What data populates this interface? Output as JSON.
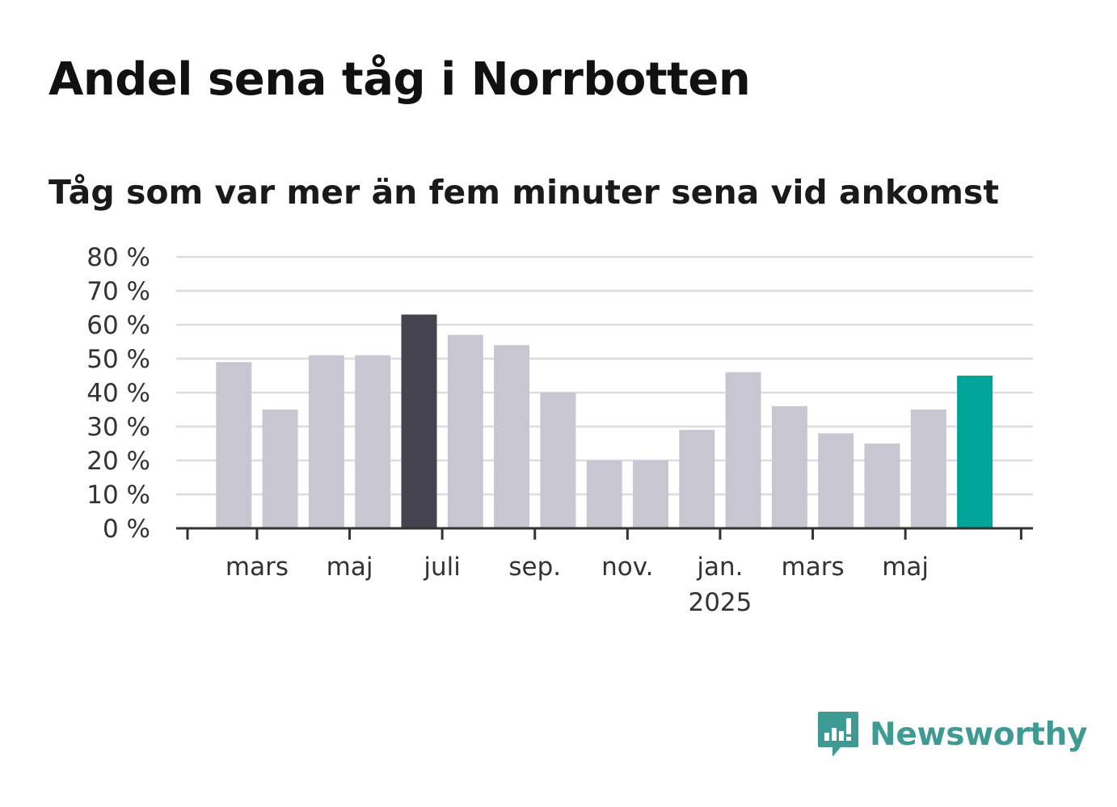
{
  "title": "Andel sena tåg i Norrbotten",
  "subtitle": "Tåg som var mer än fem minuter sena vid ankomst",
  "brand": {
    "name": "Newsworthy",
    "logo_icon": "bar-chart-speech-bubble-icon",
    "color": "#3f9a93"
  },
  "colors": {
    "default_bar": "#c8c7d1",
    "highlight_bar": "#45434f",
    "latest_bar": "#00a599",
    "grid": "#dcdcdc",
    "axis": "#333333"
  },
  "chart_data": {
    "type": "bar",
    "categories": [
      "2024-02",
      "2024-03",
      "2024-04",
      "2024-05",
      "2024-06",
      "2024-07",
      "2024-08",
      "2024-09",
      "2024-10",
      "2024-11",
      "2024-12",
      "2025-01",
      "2025-02",
      "2025-03",
      "2025-04",
      "2025-05",
      "2025-06"
    ],
    "values": [
      49,
      35,
      51,
      51,
      63,
      57,
      54,
      40,
      20,
      20,
      29,
      46,
      36,
      28,
      25,
      35,
      45
    ],
    "highlight": {
      "max": 4,
      "latest": 16
    },
    "ylim": [
      0,
      80
    ],
    "yticks": [
      {
        "value": 0,
        "label": "0 %"
      },
      {
        "value": 10,
        "label": "10 %"
      },
      {
        "value": 20,
        "label": "20 %"
      },
      {
        "value": 30,
        "label": "30 %"
      },
      {
        "value": 40,
        "label": "40 %"
      },
      {
        "value": 50,
        "label": "50 %"
      },
      {
        "value": 60,
        "label": "60 %"
      },
      {
        "value": 70,
        "label": "70 %"
      },
      {
        "value": 80,
        "label": "80 %"
      }
    ],
    "xticks": [
      {
        "label": "mars",
        "index": 1
      },
      {
        "label": "maj",
        "index": 3
      },
      {
        "label": "juli",
        "index": 5
      },
      {
        "label": "sep.",
        "index": 7
      },
      {
        "label": "nov.",
        "index": 9
      },
      {
        "label": "jan.",
        "sublabel": "2025",
        "index": 11
      },
      {
        "label": "mars",
        "index": 13
      },
      {
        "label": "maj",
        "index": 15
      }
    ],
    "grid": true,
    "legend": "none"
  }
}
